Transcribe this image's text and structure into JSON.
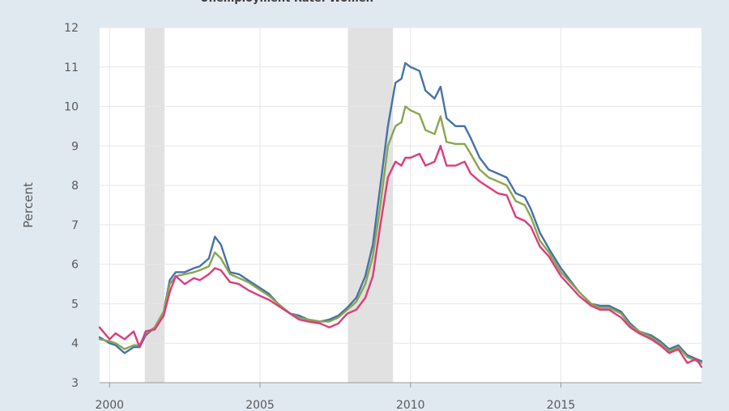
{
  "chart_data": {
    "type": "line",
    "title": "Unemployment Rate: Women",
    "ylabel": "Percent",
    "xlim": [
      1999.67,
      2019.67
    ],
    "ylim": [
      3,
      12
    ],
    "x_ticks": [
      2000,
      2005,
      2010,
      2015
    ],
    "y_ticks": [
      3,
      4,
      5,
      6,
      7,
      8,
      9,
      10,
      11,
      12
    ],
    "grid": true,
    "recessions": [
      [
        2001.17,
        2001.83
      ],
      [
        2007.92,
        2009.42
      ]
    ],
    "series": [
      {
        "color": "#4572a7",
        "points": [
          [
            1999.67,
            4.15
          ],
          [
            2000.0,
            4.0
          ],
          [
            2000.2,
            3.95
          ],
          [
            2000.5,
            3.75
          ],
          [
            2000.8,
            3.9
          ],
          [
            2001.0,
            3.9
          ],
          [
            2001.2,
            4.2
          ],
          [
            2001.5,
            4.4
          ],
          [
            2001.8,
            4.8
          ],
          [
            2002.0,
            5.6
          ],
          [
            2002.2,
            5.8
          ],
          [
            2002.5,
            5.8
          ],
          [
            2002.8,
            5.9
          ],
          [
            2003.0,
            5.95
          ],
          [
            2003.3,
            6.15
          ],
          [
            2003.5,
            6.7
          ],
          [
            2003.7,
            6.5
          ],
          [
            2004.0,
            5.8
          ],
          [
            2004.3,
            5.75
          ],
          [
            2004.6,
            5.6
          ],
          [
            2005.0,
            5.4
          ],
          [
            2005.3,
            5.25
          ],
          [
            2005.6,
            5.0
          ],
          [
            2006.0,
            4.75
          ],
          [
            2006.3,
            4.7
          ],
          [
            2006.6,
            4.6
          ],
          [
            2007.0,
            4.55
          ],
          [
            2007.3,
            4.6
          ],
          [
            2007.6,
            4.7
          ],
          [
            2007.9,
            4.9
          ],
          [
            2008.2,
            5.15
          ],
          [
            2008.5,
            5.7
          ],
          [
            2008.75,
            6.5
          ],
          [
            2009.0,
            8.0
          ],
          [
            2009.25,
            9.5
          ],
          [
            2009.5,
            10.6
          ],
          [
            2009.7,
            10.7
          ],
          [
            2009.83,
            11.1
          ],
          [
            2010.0,
            11.0
          ],
          [
            2010.3,
            10.9
          ],
          [
            2010.5,
            10.4
          ],
          [
            2010.8,
            10.2
          ],
          [
            2011.0,
            10.5
          ],
          [
            2011.2,
            9.7
          ],
          [
            2011.5,
            9.5
          ],
          [
            2011.8,
            9.5
          ],
          [
            2012.0,
            9.2
          ],
          [
            2012.3,
            8.7
          ],
          [
            2012.6,
            8.4
          ],
          [
            2012.9,
            8.3
          ],
          [
            2013.2,
            8.2
          ],
          [
            2013.5,
            7.8
          ],
          [
            2013.8,
            7.7
          ],
          [
            2014.0,
            7.4
          ],
          [
            2014.3,
            6.8
          ],
          [
            2014.6,
            6.4
          ],
          [
            2015.0,
            5.9
          ],
          [
            2015.3,
            5.6
          ],
          [
            2015.6,
            5.3
          ],
          [
            2016.0,
            5.0
          ],
          [
            2016.3,
            4.95
          ],
          [
            2016.6,
            4.95
          ],
          [
            2017.0,
            4.8
          ],
          [
            2017.3,
            4.5
          ],
          [
            2017.6,
            4.3
          ],
          [
            2018.0,
            4.2
          ],
          [
            2018.3,
            4.05
          ],
          [
            2018.6,
            3.85
          ],
          [
            2018.9,
            3.95
          ],
          [
            2019.2,
            3.7
          ],
          [
            2019.5,
            3.6
          ],
          [
            2019.67,
            3.55
          ]
        ]
      },
      {
        "color": "#89a54e",
        "points": [
          [
            1999.67,
            4.1
          ],
          [
            2000.0,
            4.05
          ],
          [
            2000.2,
            4.0
          ],
          [
            2000.5,
            3.85
          ],
          [
            2000.8,
            3.95
          ],
          [
            2001.0,
            3.95
          ],
          [
            2001.2,
            4.25
          ],
          [
            2001.5,
            4.4
          ],
          [
            2001.8,
            4.8
          ],
          [
            2002.0,
            5.5
          ],
          [
            2002.2,
            5.7
          ],
          [
            2002.5,
            5.75
          ],
          [
            2002.8,
            5.8
          ],
          [
            2003.0,
            5.85
          ],
          [
            2003.3,
            5.95
          ],
          [
            2003.5,
            6.3
          ],
          [
            2003.7,
            6.15
          ],
          [
            2004.0,
            5.75
          ],
          [
            2004.3,
            5.65
          ],
          [
            2004.6,
            5.55
          ],
          [
            2005.0,
            5.35
          ],
          [
            2005.3,
            5.2
          ],
          [
            2005.6,
            5.0
          ],
          [
            2006.0,
            4.75
          ],
          [
            2006.3,
            4.65
          ],
          [
            2006.6,
            4.6
          ],
          [
            2007.0,
            4.55
          ],
          [
            2007.3,
            4.55
          ],
          [
            2007.6,
            4.65
          ],
          [
            2007.9,
            4.85
          ],
          [
            2008.2,
            5.05
          ],
          [
            2008.5,
            5.5
          ],
          [
            2008.75,
            6.2
          ],
          [
            2009.0,
            7.5
          ],
          [
            2009.25,
            9.0
          ],
          [
            2009.5,
            9.5
          ],
          [
            2009.7,
            9.6
          ],
          [
            2009.83,
            10.0
          ],
          [
            2010.0,
            9.9
          ],
          [
            2010.3,
            9.8
          ],
          [
            2010.5,
            9.4
          ],
          [
            2010.8,
            9.3
          ],
          [
            2011.0,
            9.75
          ],
          [
            2011.2,
            9.1
          ],
          [
            2011.5,
            9.05
          ],
          [
            2011.8,
            9.05
          ],
          [
            2012.0,
            8.8
          ],
          [
            2012.3,
            8.4
          ],
          [
            2012.6,
            8.2
          ],
          [
            2012.9,
            8.1
          ],
          [
            2013.2,
            8.0
          ],
          [
            2013.5,
            7.6
          ],
          [
            2013.8,
            7.5
          ],
          [
            2014.0,
            7.2
          ],
          [
            2014.3,
            6.6
          ],
          [
            2014.6,
            6.3
          ],
          [
            2015.0,
            5.8
          ],
          [
            2015.3,
            5.55
          ],
          [
            2015.6,
            5.3
          ],
          [
            2016.0,
            5.0
          ],
          [
            2016.3,
            4.9
          ],
          [
            2016.6,
            4.9
          ],
          [
            2017.0,
            4.75
          ],
          [
            2017.3,
            4.45
          ],
          [
            2017.6,
            4.3
          ],
          [
            2018.0,
            4.15
          ],
          [
            2018.3,
            4.0
          ],
          [
            2018.6,
            3.8
          ],
          [
            2018.9,
            3.9
          ],
          [
            2019.2,
            3.65
          ],
          [
            2019.5,
            3.55
          ],
          [
            2019.67,
            3.5
          ]
        ]
      },
      {
        "color": "#db3c7c",
        "points": [
          [
            1999.67,
            4.4
          ],
          [
            2000.0,
            4.1
          ],
          [
            2000.2,
            4.25
          ],
          [
            2000.5,
            4.1
          ],
          [
            2000.8,
            4.3
          ],
          [
            2001.0,
            3.9
          ],
          [
            2001.2,
            4.3
          ],
          [
            2001.5,
            4.35
          ],
          [
            2001.8,
            4.7
          ],
          [
            2002.0,
            5.3
          ],
          [
            2002.2,
            5.7
          ],
          [
            2002.5,
            5.5
          ],
          [
            2002.8,
            5.65
          ],
          [
            2003.0,
            5.6
          ],
          [
            2003.3,
            5.75
          ],
          [
            2003.5,
            5.9
          ],
          [
            2003.7,
            5.85
          ],
          [
            2004.0,
            5.55
          ],
          [
            2004.3,
            5.5
          ],
          [
            2004.6,
            5.35
          ],
          [
            2005.0,
            5.2
          ],
          [
            2005.3,
            5.1
          ],
          [
            2005.6,
            4.95
          ],
          [
            2006.0,
            4.75
          ],
          [
            2006.3,
            4.6
          ],
          [
            2006.6,
            4.55
          ],
          [
            2007.0,
            4.5
          ],
          [
            2007.3,
            4.4
          ],
          [
            2007.6,
            4.5
          ],
          [
            2007.9,
            4.75
          ],
          [
            2008.2,
            4.85
          ],
          [
            2008.5,
            5.15
          ],
          [
            2008.75,
            5.7
          ],
          [
            2009.0,
            7.0
          ],
          [
            2009.25,
            8.2
          ],
          [
            2009.5,
            8.6
          ],
          [
            2009.7,
            8.5
          ],
          [
            2009.83,
            8.7
          ],
          [
            2010.0,
            8.7
          ],
          [
            2010.3,
            8.8
          ],
          [
            2010.5,
            8.5
          ],
          [
            2010.8,
            8.6
          ],
          [
            2011.0,
            9.0
          ],
          [
            2011.2,
            8.5
          ],
          [
            2011.5,
            8.5
          ],
          [
            2011.8,
            8.6
          ],
          [
            2012.0,
            8.3
          ],
          [
            2012.3,
            8.1
          ],
          [
            2012.6,
            7.95
          ],
          [
            2012.9,
            7.8
          ],
          [
            2013.2,
            7.75
          ],
          [
            2013.5,
            7.2
          ],
          [
            2013.8,
            7.1
          ],
          [
            2014.0,
            6.95
          ],
          [
            2014.3,
            6.45
          ],
          [
            2014.6,
            6.2
          ],
          [
            2015.0,
            5.7
          ],
          [
            2015.3,
            5.45
          ],
          [
            2015.6,
            5.2
          ],
          [
            2016.0,
            4.95
          ],
          [
            2016.3,
            4.85
          ],
          [
            2016.6,
            4.85
          ],
          [
            2017.0,
            4.65
          ],
          [
            2017.3,
            4.4
          ],
          [
            2017.6,
            4.25
          ],
          [
            2018.0,
            4.1
          ],
          [
            2018.3,
            3.95
          ],
          [
            2018.6,
            3.75
          ],
          [
            2018.9,
            3.85
          ],
          [
            2019.2,
            3.5
          ],
          [
            2019.5,
            3.6
          ],
          [
            2019.67,
            3.4
          ]
        ]
      }
    ]
  },
  "style": {
    "plot_background": "#ffffff",
    "page_background": "#e1e9f0",
    "grid_color": "#e6e6e6",
    "recession_color": "#e1e1e1",
    "text_color": "#595959"
  }
}
